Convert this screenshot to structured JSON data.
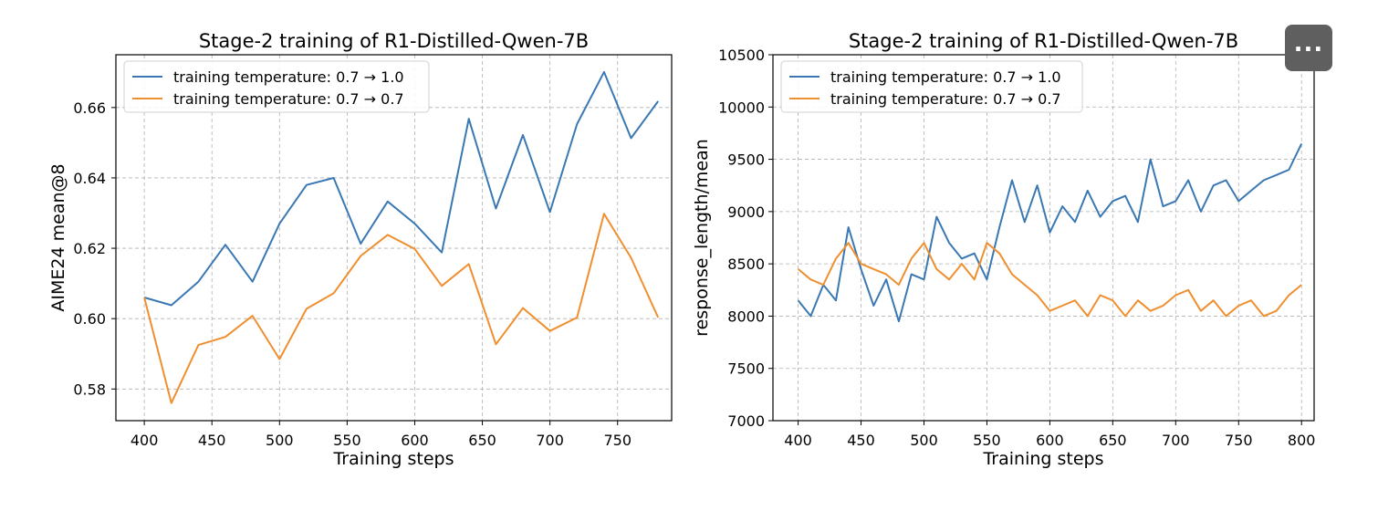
{
  "more_button": {
    "label": "...",
    "icon": "more-horizontal-icon"
  },
  "colors": {
    "series_a": "#3a78b3",
    "series_b": "#ef8f2f",
    "grid": "#b0b0b0"
  },
  "chart_data": [
    {
      "type": "line",
      "title": "Stage-2 training of R1-Distilled-Qwen-7B",
      "xlabel": "Training steps",
      "ylabel": "AIME24 mean@8",
      "xlim": [
        379,
        790
      ],
      "ylim": [
        0.571,
        0.675
      ],
      "xticks": [
        400,
        450,
        500,
        550,
        600,
        650,
        700,
        750
      ],
      "yticks": [
        0.58,
        0.6,
        0.62,
        0.64,
        0.66
      ],
      "ytick_labels": [
        "0.58",
        "0.60",
        "0.62",
        "0.64",
        "0.66"
      ],
      "grid": true,
      "legend_loc": "upper left",
      "x": [
        400,
        420,
        440,
        460,
        480,
        500,
        520,
        540,
        560,
        580,
        600,
        620,
        640,
        660,
        680,
        700,
        720,
        740,
        760,
        780
      ],
      "series": [
        {
          "name": "training temperature: 0.7 → 1.0",
          "values": [
            0.606,
            0.6038,
            0.6105,
            0.621,
            0.6105,
            0.627,
            0.638,
            0.64,
            0.6213,
            0.6333,
            0.627,
            0.6188,
            0.6568,
            0.6313,
            0.6522,
            0.6303,
            0.6553,
            0.6701,
            0.6513,
            0.6618
          ]
        },
        {
          "name": "training temperature: 0.7 → 0.7",
          "values": [
            0.606,
            0.576,
            0.5925,
            0.5948,
            0.6008,
            0.5885,
            0.6028,
            0.6072,
            0.6178,
            0.6238,
            0.6198,
            0.6093,
            0.6155,
            0.5927,
            0.603,
            0.5965,
            0.6003,
            0.6298,
            0.6173,
            0.6003
          ]
        }
      ]
    },
    {
      "type": "line",
      "title": "Stage-2 training of R1-Distilled-Qwen-7B",
      "xlabel": "Training steps",
      "ylabel": "response_length/mean",
      "xlim": [
        380,
        810
      ],
      "ylim": [
        7000,
        10500
      ],
      "xticks": [
        400,
        450,
        500,
        550,
        600,
        650,
        700,
        750,
        800
      ],
      "yticks": [
        7000,
        7500,
        8000,
        8500,
        9000,
        9500,
        10000,
        10500
      ],
      "ytick_labels": [
        "7000",
        "7500",
        "8000",
        "8500",
        "9000",
        "9500",
        "10000",
        "10500"
      ],
      "grid": true,
      "legend_loc": "upper left",
      "x": [
        400,
        410,
        420,
        430,
        440,
        450,
        460,
        470,
        480,
        490,
        500,
        510,
        520,
        530,
        540,
        550,
        560,
        570,
        580,
        590,
        600,
        610,
        620,
        630,
        640,
        650,
        660,
        670,
        680,
        690,
        700,
        710,
        720,
        730,
        740,
        750,
        760,
        770,
        780,
        790,
        800
      ],
      "series": [
        {
          "name": "training temperature: 0.7 → 1.0",
          "values": [
            8150,
            8000,
            8300,
            8150,
            8850,
            8450,
            8100,
            8350,
            7950,
            8400,
            8350,
            8950,
            8700,
            8550,
            8600,
            8350,
            8850,
            9300,
            8900,
            9250,
            8800,
            9050,
            8900,
            9200,
            8950,
            9100,
            9150,
            8900,
            9500,
            9050,
            9100,
            9300,
            9000,
            9250,
            9300,
            9100,
            9200,
            9300,
            9350,
            9400,
            9650
          ]
        },
        {
          "name": "training temperature: 0.7 → 0.7",
          "values": [
            8450,
            8350,
            8300,
            8550,
            8700,
            8500,
            8450,
            8400,
            8300,
            8550,
            8700,
            8450,
            8350,
            8500,
            8350,
            8700,
            8600,
            8400,
            8300,
            8200,
            8050,
            8100,
            8150,
            8000,
            8200,
            8150,
            8000,
            8150,
            8050,
            8100,
            8200,
            8250,
            8050,
            8150,
            8000,
            8100,
            8150,
            8000,
            8050,
            8200,
            8300
          ]
        }
      ]
    }
  ]
}
